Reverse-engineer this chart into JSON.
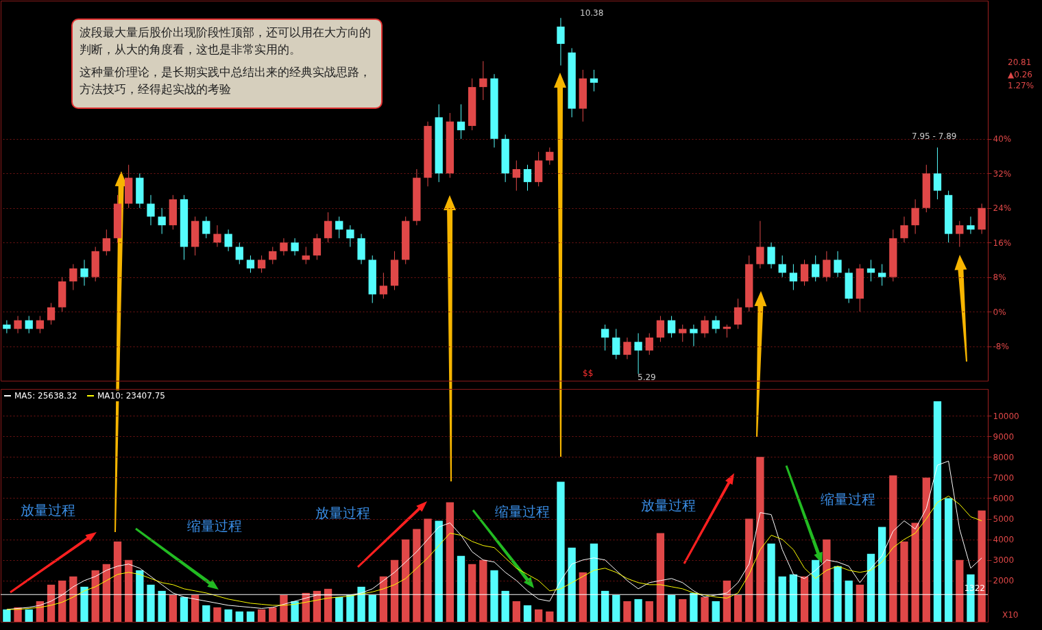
{
  "chart_data": [
    {
      "type": "candlestick",
      "categories": [
        null,
        null,
        null,
        null,
        null,
        null,
        null,
        null,
        null,
        null,
        null,
        null,
        null,
        null,
        null,
        null,
        null,
        null,
        null,
        null,
        null,
        null,
        null,
        null,
        null,
        null,
        null,
        null,
        null,
        null,
        null,
        null,
        null,
        null,
        null,
        null,
        null,
        null,
        null,
        null,
        null,
        null,
        null,
        null,
        null,
        null,
        null,
        null,
        null,
        null,
        null,
        null,
        null,
        null,
        null,
        null,
        null,
        null,
        null,
        null,
        null,
        null,
        null,
        null,
        null,
        null,
        null,
        null,
        null,
        null,
        null,
        null,
        null,
        null,
        null,
        null,
        null,
        null,
        null,
        null,
        null,
        null,
        null,
        null,
        null,
        null,
        null,
        null,
        null
      ],
      "ohlc": [
        [
          -3,
          -2,
          -5,
          -4
        ],
        [
          -4,
          -1,
          -5,
          -2
        ],
        [
          -2,
          -1,
          -5,
          -4
        ],
        [
          -4,
          -1,
          -5,
          -2
        ],
        [
          -2,
          2,
          -3,
          1
        ],
        [
          1,
          8,
          0,
          7
        ],
        [
          7,
          11,
          5,
          10
        ],
        [
          10,
          12,
          6,
          8
        ],
        [
          8,
          15,
          7,
          14
        ],
        [
          14,
          19,
          13,
          17
        ],
        [
          17,
          27,
          16,
          25
        ],
        [
          25,
          34,
          24,
          31
        ],
        [
          31,
          32,
          24,
          25
        ],
        [
          25,
          27,
          20,
          22
        ],
        [
          22,
          24,
          18,
          20
        ],
        [
          20,
          27,
          19,
          26
        ],
        [
          26,
          27,
          12,
          15
        ],
        [
          15,
          22,
          13,
          21
        ],
        [
          21,
          22,
          17,
          18
        ],
        [
          16,
          20,
          15,
          18
        ],
        [
          18,
          19,
          14,
          15
        ],
        [
          15,
          16,
          11,
          12
        ],
        [
          12,
          13,
          9,
          10
        ],
        [
          10,
          13,
          9,
          12
        ],
        [
          12,
          15,
          11,
          14
        ],
        [
          14,
          17,
          13,
          16
        ],
        [
          16,
          17,
          13,
          14
        ],
        [
          12,
          15,
          11,
          13
        ],
        [
          13,
          18,
          12,
          17
        ],
        [
          17,
          23,
          16,
          21
        ],
        [
          21,
          22,
          17,
          19
        ],
        [
          19,
          20,
          15,
          17
        ],
        [
          17,
          18,
          11,
          12
        ],
        [
          12,
          13,
          2,
          4
        ],
        [
          4,
          9,
          3,
          6
        ],
        [
          6,
          14,
          5,
          12
        ],
        [
          12,
          22,
          11,
          21
        ],
        [
          21,
          33,
          20,
          31
        ],
        [
          31,
          44,
          29,
          43
        ],
        [
          45,
          48,
          30,
          32
        ],
        [
          32,
          46,
          31,
          44
        ],
        [
          44,
          48,
          40,
          42
        ],
        [
          43,
          54,
          42,
          52
        ],
        [
          52,
          58,
          49,
          54
        ],
        [
          54,
          55,
          38,
          40
        ],
        [
          40,
          41,
          30,
          32
        ],
        [
          31,
          35,
          28,
          33
        ],
        [
          33,
          34,
          28,
          30
        ],
        [
          30,
          37,
          29,
          35
        ],
        [
          35,
          38,
          34,
          37
        ],
        [
          66,
          68,
          57,
          62
        ],
        [
          60,
          61,
          45,
          47
        ],
        [
          47,
          56,
          44,
          54
        ],
        [
          54,
          56,
          51,
          53
        ],
        [
          -4,
          -3,
          -9,
          -6
        ],
        [
          -6,
          -4,
          -11,
          -10
        ],
        [
          -10,
          -6,
          -11,
          -7
        ],
        [
          -7,
          -5,
          -14.4,
          -9
        ],
        [
          -9,
          -5,
          -10,
          -6
        ],
        [
          -6,
          -1,
          -7,
          -2
        ],
        [
          -2,
          -1,
          -6,
          -5
        ],
        [
          -5,
          -3,
          -7,
          -4
        ],
        [
          -4,
          -3,
          -8,
          -5
        ],
        [
          -5,
          -1,
          -6,
          -2
        ],
        [
          -2,
          -1,
          -5,
          -4
        ],
        [
          -4,
          -3,
          -6,
          -3.5
        ],
        [
          -3,
          3,
          -4,
          1
        ],
        [
          1,
          13,
          0,
          11
        ],
        [
          11,
          21,
          10,
          15
        ],
        [
          15,
          16,
          10,
          11
        ],
        [
          11,
          13,
          8,
          9
        ],
        [
          9,
          11,
          5,
          7
        ],
        [
          7,
          12,
          6,
          11
        ],
        [
          11,
          13,
          7,
          8
        ],
        [
          8,
          14,
          7,
          12
        ],
        [
          12,
          14,
          8,
          9
        ],
        [
          9,
          10,
          2,
          3
        ],
        [
          3,
          11,
          0,
          10
        ],
        [
          10,
          12,
          7,
          9
        ],
        [
          9,
          11,
          6,
          8
        ],
        [
          8,
          19,
          7,
          17
        ],
        [
          17,
          22,
          16,
          20
        ],
        [
          20,
          26,
          18,
          24
        ],
        [
          24,
          34,
          23,
          32
        ],
        [
          32,
          38,
          26,
          28
        ],
        [
          27,
          28,
          16,
          18
        ],
        [
          18,
          21,
          15,
          20
        ],
        [
          20,
          22,
          18,
          19
        ],
        [
          19,
          25,
          18,
          24
        ]
      ],
      "colors": [
        "#54fcfc",
        "#e04848",
        "#54fcfc",
        "#e04848",
        "#e04848",
        "#e04848",
        "#e04848",
        "#54fcfc",
        "#e04848",
        "#e04848",
        "#e04848",
        "#e04848",
        "#54fcfc",
        "#54fcfc",
        "#54fcfc",
        "#e04848",
        "#54fcfc",
        "#e04848",
        "#54fcfc",
        "#e04848",
        "#54fcfc",
        "#54fcfc",
        "#54fcfc",
        "#e04848",
        "#e04848",
        "#e04848",
        "#54fcfc",
        "#e04848",
        "#e04848",
        "#e04848",
        "#54fcfc",
        "#54fcfc",
        "#54fcfc",
        "#54fcfc",
        "#e04848",
        "#e04848",
        "#e04848",
        "#e04848",
        "#e04848",
        "#54fcfc",
        "#e04848",
        "#54fcfc",
        "#e04848",
        "#e04848",
        "#54fcfc",
        "#54fcfc",
        "#e04848",
        "#54fcfc",
        "#e04848",
        "#e04848",
        "#54fcfc",
        "#54fcfc",
        "#e04848",
        "#54fcfc",
        "#54fcfc",
        "#54fcfc",
        "#e04848",
        "#54fcfc",
        "#e04848",
        "#e04848",
        "#54fcfc",
        "#e04848",
        "#54fcfc",
        "#e04848",
        "#54fcfc",
        "#e04848",
        "#e04848",
        "#e04848",
        "#e04848",
        "#54fcfc",
        "#54fcfc",
        "#54fcfc",
        "#e04848",
        "#54fcfc",
        "#e04848",
        "#54fcfc",
        "#54fcfc",
        "#e04848",
        "#54fcfc",
        "#54fcfc",
        "#e04848",
        "#e04848",
        "#e04848",
        "#e04848",
        "#54fcfc",
        "#54fcfc",
        "#e04848",
        "#54fcfc",
        "#e04848"
      ],
      "ylim": [
        -16,
        72
      ],
      "yticks": [
        {
          "value": -8,
          "label": "-8%"
        },
        {
          "value": 0,
          "label": "0%"
        },
        {
          "value": 8,
          "label": "8%"
        },
        {
          "value": 16,
          "label": "16%"
        },
        {
          "value": 24,
          "label": "24%"
        },
        {
          "value": 32,
          "label": "32%"
        },
        {
          "value": 40,
          "label": "40%"
        }
      ],
      "grid": "y",
      "tick_labels": "y",
      "annotations": [
        "波段最大量后股价出现阶段性顶部，还可以用在大方向的判断，从大的角度看，这也是非常实用的。",
        "这种量价理论，是长期实践中总结出来的经典实战思路，方法技巧，经得起实战的考验",
        "10.38",
        "5.29",
        "7.95 - 7.89",
        "20.81",
        "▲0.26",
        "1.27%",
        "$$"
      ]
    },
    {
      "type": "bar",
      "categories": [
        null,
        null,
        null,
        null,
        null,
        null,
        null,
        null,
        null,
        null,
        null,
        null,
        null,
        null,
        null,
        null,
        null,
        null,
        null,
        null,
        null,
        null,
        null,
        null,
        null,
        null,
        null,
        null,
        null,
        null,
        null,
        null,
        null,
        null,
        null,
        null,
        null,
        null,
        null,
        null,
        null,
        null,
        null,
        null,
        null,
        null,
        null,
        null,
        null,
        null,
        null,
        null,
        null,
        null,
        null,
        null,
        null,
        null,
        null,
        null,
        null,
        null,
        null,
        null,
        null,
        null,
        null,
        null,
        null,
        null,
        null,
        null,
        null,
        null,
        null,
        null,
        null,
        null,
        null,
        null,
        null,
        null,
        null,
        null,
        null,
        null,
        null,
        null,
        null
      ],
      "series": [
        {
          "type": "bar",
          "values": [
            600,
            700,
            600,
            1000,
            1800,
            2000,
            2200,
            1700,
            2500,
            2800,
            3900,
            3000,
            2500,
            1800,
            1500,
            1300,
            1200,
            1300,
            800,
            700,
            600,
            500,
            500,
            600,
            700,
            1300,
            1000,
            1400,
            1500,
            1600,
            1200,
            1300,
            1700,
            1300,
            2200,
            3000,
            4000,
            4500,
            5000,
            4900,
            5800,
            3200,
            2800,
            3000,
            2500,
            1500,
            1000,
            800,
            600,
            500,
            6800,
            3600,
            2400,
            3800,
            1500,
            1300,
            1000,
            1100,
            1000,
            4300,
            1300,
            1100,
            1400,
            1200,
            1000,
            2000,
            1300,
            5000,
            8000,
            3800,
            2200,
            2300,
            2200,
            3000,
            4000,
            2700,
            2000,
            1800,
            3300,
            4600,
            7100,
            3900,
            4800,
            7000,
            10700,
            6000,
            3000,
            2300,
            5400
          ],
          "colors": [
            "#54fcfc",
            "#e04848",
            "#54fcfc",
            "#e04848",
            "#e04848",
            "#e04848",
            "#e04848",
            "#54fcfc",
            "#e04848",
            "#e04848",
            "#e04848",
            "#e04848",
            "#54fcfc",
            "#54fcfc",
            "#54fcfc",
            "#e04848",
            "#54fcfc",
            "#e04848",
            "#54fcfc",
            "#e04848",
            "#54fcfc",
            "#54fcfc",
            "#54fcfc",
            "#e04848",
            "#e04848",
            "#e04848",
            "#54fcfc",
            "#e04848",
            "#e04848",
            "#e04848",
            "#54fcfc",
            "#54fcfc",
            "#54fcfc",
            "#54fcfc",
            "#e04848",
            "#e04848",
            "#e04848",
            "#e04848",
            "#e04848",
            "#54fcfc",
            "#e04848",
            "#54fcfc",
            "#e04848",
            "#e04848",
            "#54fcfc",
            "#54fcfc",
            "#e04848",
            "#54fcfc",
            "#e04848",
            "#e04848",
            "#54fcfc",
            "#54fcfc",
            "#e04848",
            "#54fcfc",
            "#54fcfc",
            "#54fcfc",
            "#e04848",
            "#54fcfc",
            "#e04848",
            "#e04848",
            "#54fcfc",
            "#e04848",
            "#54fcfc",
            "#e04848",
            "#54fcfc",
            "#e04848",
            "#e04848",
            "#e04848",
            "#e04848",
            "#54fcfc",
            "#54fcfc",
            "#54fcfc",
            "#e04848",
            "#54fcfc",
            "#e04848",
            "#54fcfc",
            "#54fcfc",
            "#e04848",
            "#54fcfc",
            "#54fcfc",
            "#e04848",
            "#e04848",
            "#e04848",
            "#e04848",
            "#54fcfc",
            "#54fcfc",
            "#e04848",
            "#54fcfc",
            "#e04848"
          ]
        },
        {
          "type": "line",
          "name": "MA5: 25638.32",
          "color": "#ffffff",
          "values": [
            600,
            650,
            700,
            800,
            1000,
            1300,
            1700,
            2000,
            2200,
            2500,
            2700,
            2800,
            2600,
            2200,
            1800,
            1400,
            1200,
            1100,
            1000,
            900,
            800,
            750,
            700,
            650,
            700,
            850,
            1000,
            1150,
            1300,
            1300,
            1300,
            1300,
            1400,
            1600,
            2000,
            2400,
            2900,
            3400,
            4000,
            4600,
            4800,
            4200,
            3400,
            3000,
            2900,
            2400,
            2000,
            1500,
            1100,
            1000,
            2000,
            2800,
            3000,
            3100,
            3000,
            2500,
            2000,
            1600,
            1900,
            2000,
            2100,
            1900,
            1500,
            1200,
            1300,
            1400,
            1900,
            2800,
            5300,
            5200,
            3500,
            2300,
            2100,
            2500,
            3000,
            2900,
            2700,
            1900,
            2600,
            3200,
            4400,
            4900,
            4500,
            5500,
            7600,
            7800,
            4500,
            2600,
            3100
          ]
        },
        {
          "type": "line",
          "name": "MA10: 23407.75",
          "color": "#ffff00",
          "values": [
            600,
            600,
            650,
            700,
            800,
            950,
            1200,
            1500,
            1700,
            2000,
            2300,
            2400,
            2300,
            2100,
            1900,
            1800,
            1600,
            1500,
            1400,
            1250,
            1100,
            1000,
            900,
            850,
            800,
            800,
            850,
            950,
            1050,
            1150,
            1200,
            1250,
            1350,
            1450,
            1600,
            1800,
            2100,
            2600,
            3100,
            3700,
            4300,
            4200,
            3900,
            3700,
            3600,
            3100,
            2600,
            2300,
            2000,
            1500,
            1600,
            1900,
            2200,
            2500,
            2600,
            2400,
            2100,
            1900,
            1800,
            1800,
            1700,
            1600,
            1400,
            1300,
            1200,
            1150,
            1400,
            2300,
            3500,
            4200,
            4000,
            3500,
            2600,
            2100,
            2500,
            2700,
            2500,
            2400,
            2500,
            2900,
            3600,
            4000,
            4300,
            5000,
            5800,
            6100,
            5700,
            5100,
            4900
          ]
        }
      ],
      "ylim": [
        0,
        11300
      ],
      "yticks": [
        2000,
        3000,
        4000,
        5000,
        6000,
        7000,
        8000,
        9000,
        10000
      ],
      "grid": "y",
      "tick_labels": "y",
      "legend": "top left",
      "ref_lines": [
        {
          "axis": "y",
          "value": 1322,
          "label": "1322",
          "color": "#ffffff"
        }
      ],
      "annotations": [
        "放量过程",
        "缩量过程",
        "放量过程",
        "缩量过程",
        "放量过程",
        "缩量过程",
        "X10"
      ]
    }
  ]
}
